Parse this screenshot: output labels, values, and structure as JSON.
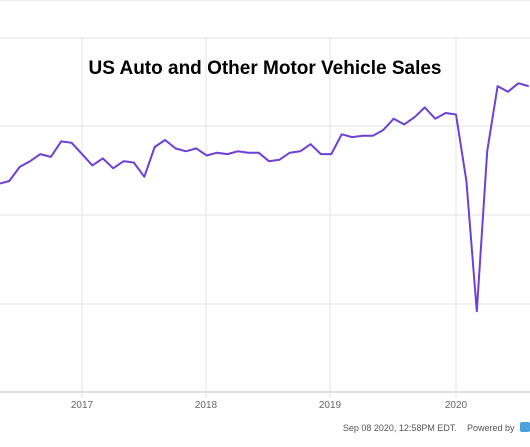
{
  "chart_data": {
    "type": "line",
    "title": "US Auto and Other Motor Vehicle Sales",
    "x_ticks": [
      "2017",
      "2018",
      "2019",
      "2020"
    ],
    "x": [
      "2016-05",
      "2016-06",
      "2016-07",
      "2016-08",
      "2016-09",
      "2016-10",
      "2016-11",
      "2016-12",
      "2017-01",
      "2017-02",
      "2017-03",
      "2017-04",
      "2017-05",
      "2017-06",
      "2017-07",
      "2017-08",
      "2017-09",
      "2017-10",
      "2017-11",
      "2017-12",
      "2018-01",
      "2018-02",
      "2018-03",
      "2018-04",
      "2018-05",
      "2018-06",
      "2018-07",
      "2018-08",
      "2018-09",
      "2018-10",
      "2018-11",
      "2018-12",
      "2019-01",
      "2019-02",
      "2019-03",
      "2019-04",
      "2019-05",
      "2019-06",
      "2019-07",
      "2019-08",
      "2019-09",
      "2019-10",
      "2019-11",
      "2019-12",
      "2020-01",
      "2020-02",
      "2020-03",
      "2020-04",
      "2020-05",
      "2020-06",
      "2020-07",
      "2020-08"
    ],
    "series": [
      {
        "color": "#6f3fd6",
        "values": [
          0.522,
          0.524,
          0.534,
          0.538,
          0.543,
          0.541,
          0.552,
          0.551,
          0.543,
          0.535,
          0.54,
          0.533,
          0.538,
          0.537,
          0.527,
          0.548,
          0.553,
          0.547,
          0.545,
          0.547,
          0.542,
          0.544,
          0.543,
          0.545,
          0.544,
          0.544,
          0.538,
          0.539,
          0.544,
          0.545,
          0.55,
          0.543,
          0.543,
          0.557,
          0.555,
          0.556,
          0.556,
          0.56,
          0.568,
          0.564,
          0.569,
          0.576,
          0.568,
          0.572,
          0.571,
          0.524,
          0.432,
          0.545,
          0.591,
          0.587,
          0.593,
          0.591
        ]
      }
    ],
    "grid": true,
    "legend": "none"
  },
  "footer": {
    "timestamp": "Sep 08 2020, 12:58PM EDT.",
    "powered_by": "Powered by"
  }
}
